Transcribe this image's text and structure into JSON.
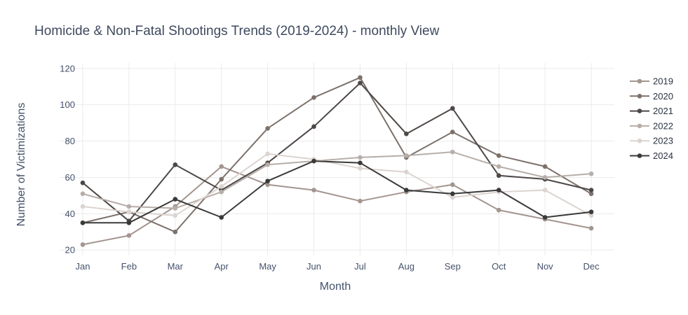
{
  "chart_data": {
    "type": "line",
    "title": "Homicide & Non-Fatal Shootings Trends (2019-2024) - monthly View",
    "xlabel": "Month",
    "ylabel": "Number of Victimizations",
    "categories": [
      "Jan",
      "Feb",
      "Mar",
      "Apr",
      "May",
      "Jun",
      "Jul",
      "Aug",
      "Sep",
      "Oct",
      "Nov",
      "Dec"
    ],
    "ylim": [
      17,
      123
    ],
    "yticks": [
      20,
      40,
      60,
      80,
      100,
      120
    ],
    "grid": true,
    "legend_position": "right",
    "series": [
      {
        "name": "2019",
        "color": "#a3958f",
        "values": [
          23,
          28,
          44,
          66,
          56,
          53,
          47,
          52,
          56,
          42,
          37,
          32
        ]
      },
      {
        "name": "2020",
        "color": "#7c716b",
        "values": [
          35,
          41,
          30,
          59,
          87,
          104,
          115,
          71,
          85,
          72,
          66,
          51
        ]
      },
      {
        "name": "2021",
        "color": "#4d4846",
        "values": [
          57,
          36,
          67,
          53,
          68,
          88,
          112,
          84,
          98,
          61,
          59,
          53
        ]
      },
      {
        "name": "2022",
        "color": "#b7aea9",
        "values": [
          51,
          44,
          43,
          52,
          67,
          69,
          71,
          72,
          74,
          66,
          60,
          62
        ]
      },
      {
        "name": "2023",
        "color": "#dcd4d0",
        "values": [
          44,
          41,
          39,
          55,
          73,
          70,
          65,
          63,
          49,
          52,
          53,
          39
        ]
      },
      {
        "name": "2024",
        "color": "#3a3a3a",
        "values": [
          35,
          35,
          48,
          38,
          58,
          69,
          68,
          53,
          51,
          53,
          38,
          41
        ]
      }
    ]
  }
}
